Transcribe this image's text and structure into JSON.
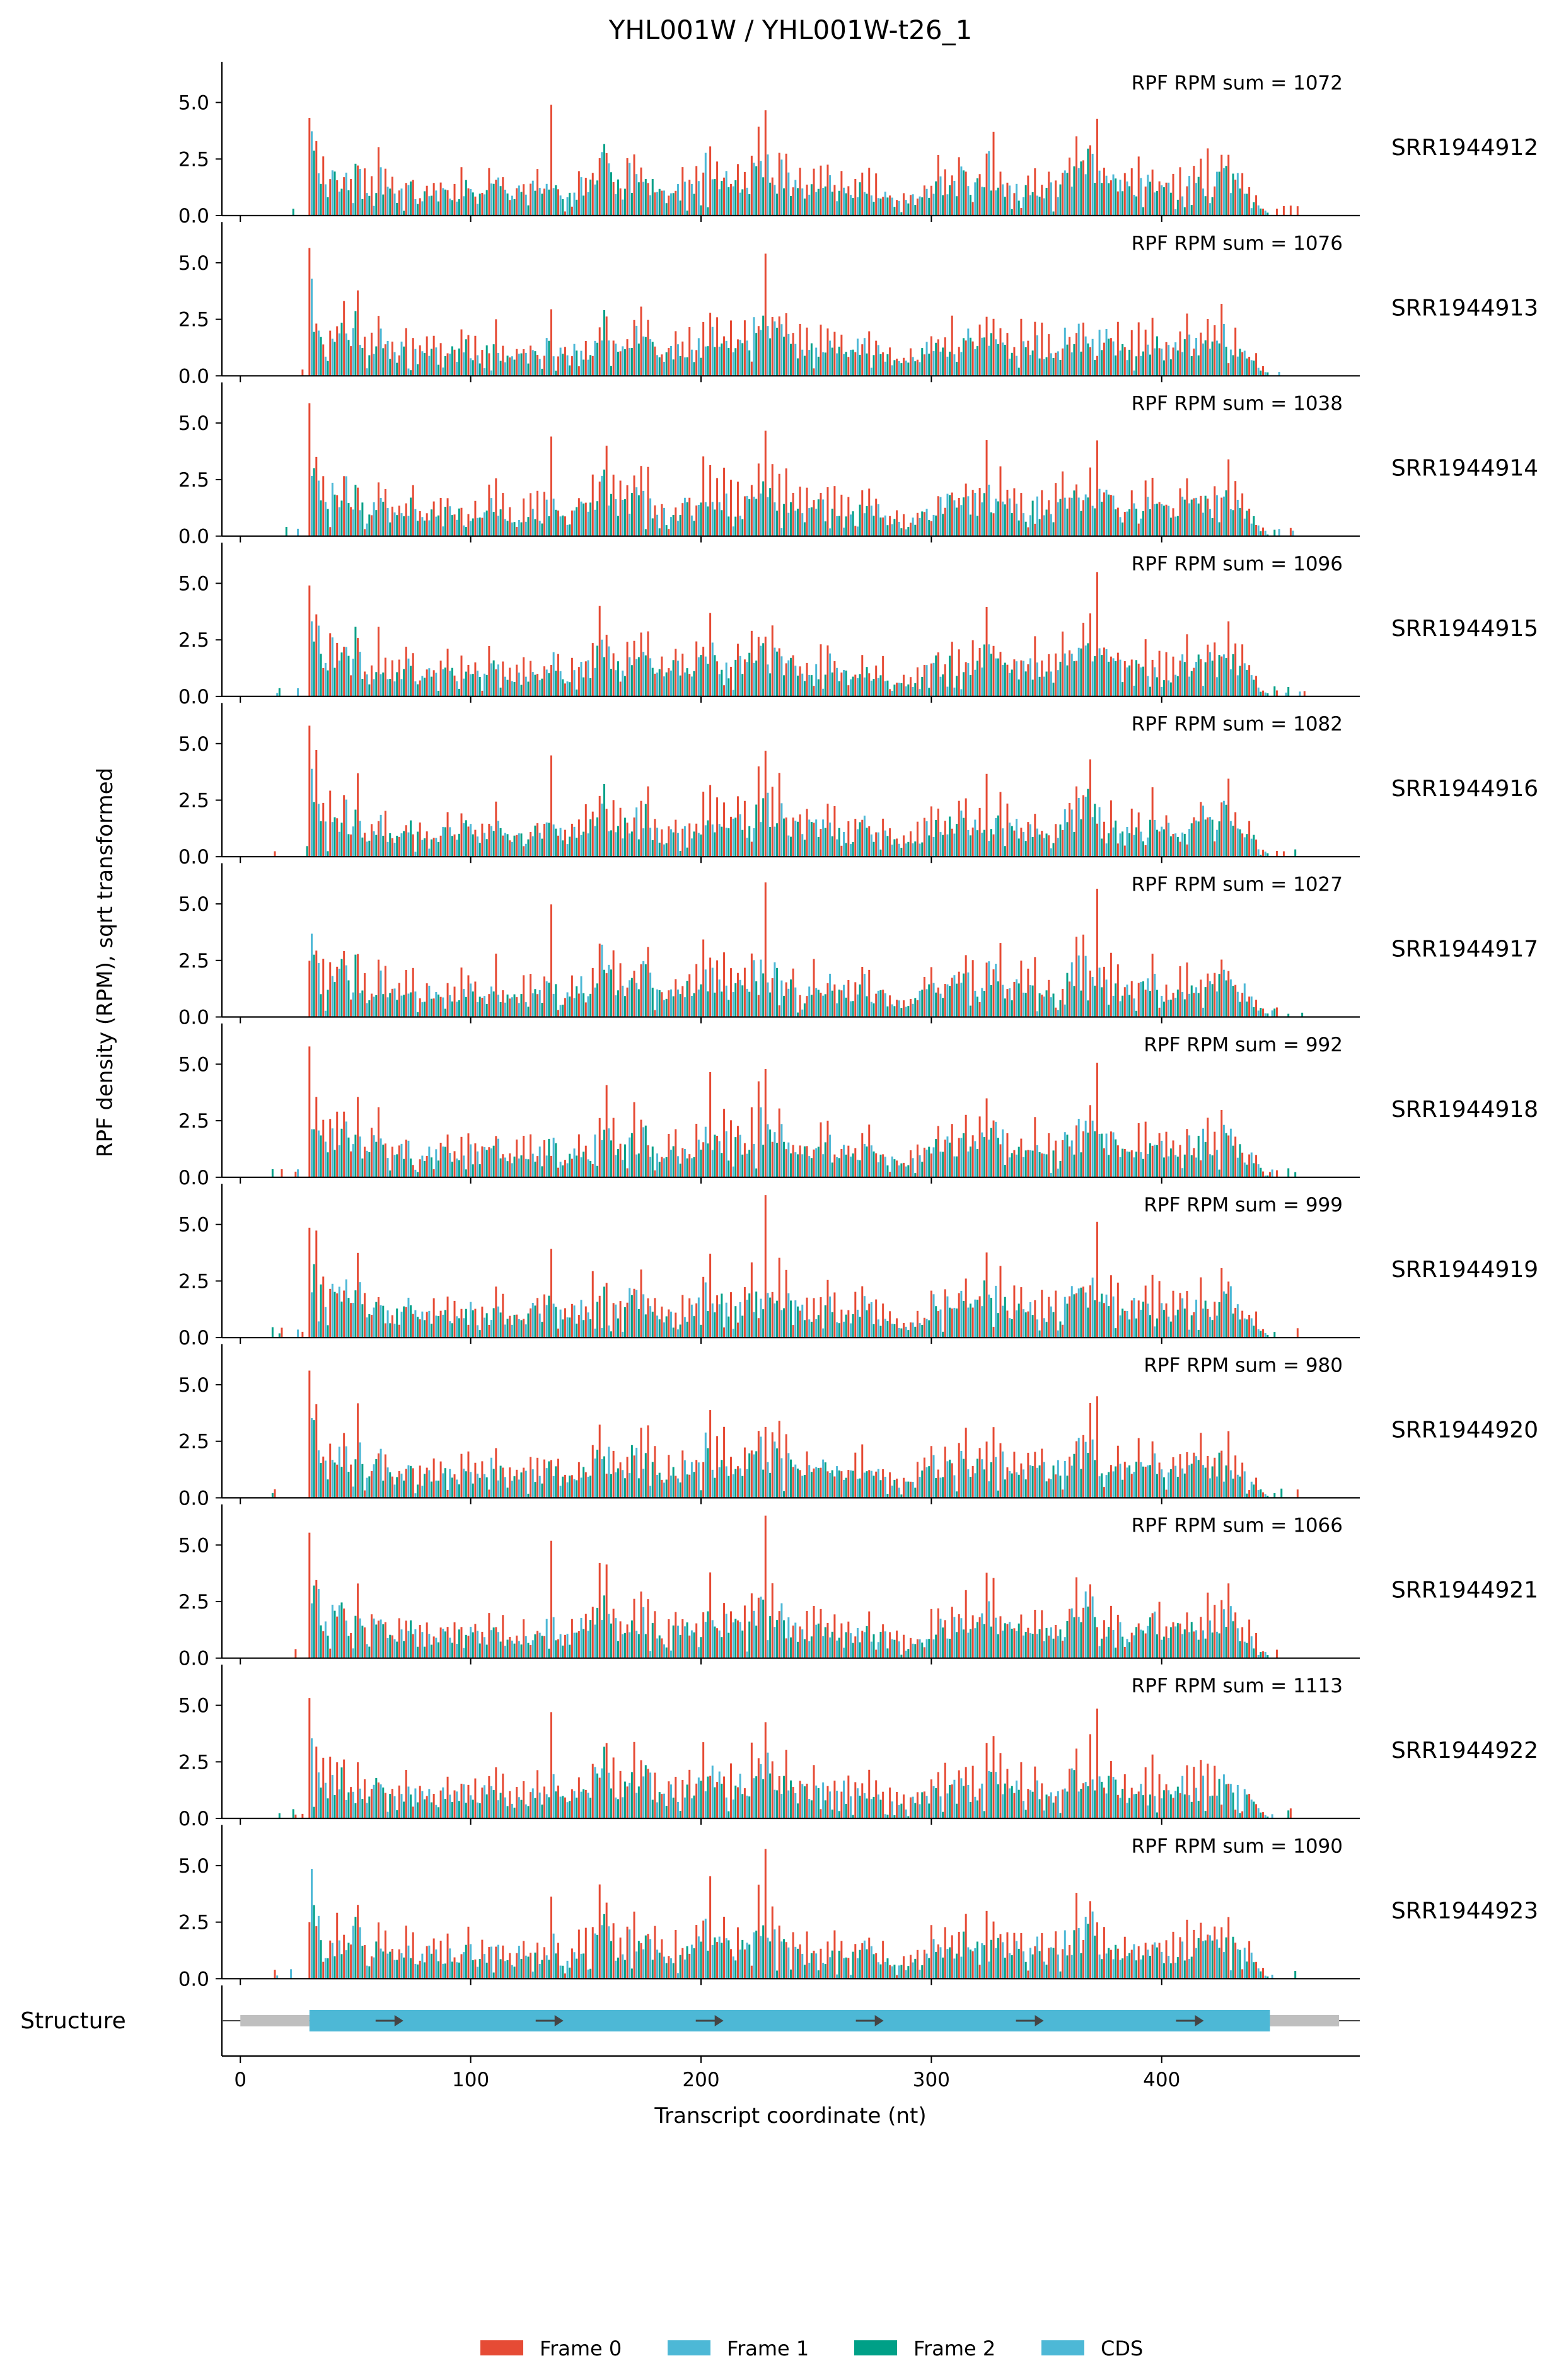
{
  "title": "YHL001W / YHL001W-t26_1",
  "ylabel": "RPF density (RPM), sqrt transformed",
  "xlabel": "Transcript coordinate (nt)",
  "structure_label": "Structure",
  "colors": {
    "frame0": "#e64b35",
    "frame1": "#4db8d6",
    "frame2": "#00a087",
    "cds": "#4db8d6",
    "utr": "#bfbfbf",
    "arrow": "#444444"
  },
  "chart_data": {
    "type": "bar",
    "x_axis": {
      "label": "Transcript coordinate (nt)",
      "range": [
        -8,
        486
      ],
      "ticks": [
        0,
        100,
        200,
        300,
        400
      ],
      "tick_labels": [
        "0",
        "100",
        "200",
        "300",
        "400"
      ]
    },
    "y_axis": {
      "range": [
        0,
        6.8
      ],
      "ticks": [
        0,
        2.5,
        5
      ],
      "tick_labels": [
        "0.0",
        "2.5",
        "5.0"
      ]
    },
    "legend": {
      "placement": "bottom-center",
      "entries": [
        {
          "label": "Frame 0",
          "color": "#e64b35"
        },
        {
          "label": "Frame 1",
          "color": "#4db8d6"
        },
        {
          "label": "Frame 2",
          "color": "#00a087"
        },
        {
          "label": "CDS",
          "color": "#4db8d6"
        }
      ]
    },
    "cds": {
      "start": 30,
      "end": 447
    },
    "transcript": {
      "start": 0,
      "end": 477
    },
    "base_profile": [
      [
        30,
        3.6
      ],
      [
        31,
        3.9
      ],
      [
        32,
        3.4
      ],
      [
        34,
        2.6
      ],
      [
        35,
        2.2
      ],
      [
        36,
        1.6
      ],
      [
        38,
        1.2
      ],
      [
        40,
        2.5
      ],
      [
        42,
        1.8
      ],
      [
        44,
        2.4
      ],
      [
        45,
        2.0
      ],
      [
        46,
        2.3
      ],
      [
        48,
        1.1
      ],
      [
        50,
        2.9
      ],
      [
        51,
        2.6
      ],
      [
        53,
        1.5
      ],
      [
        55,
        1.0
      ],
      [
        57,
        1.3
      ],
      [
        60,
        2.0
      ],
      [
        63,
        1.4
      ],
      [
        66,
        1.1
      ],
      [
        70,
        1.3
      ],
      [
        74,
        1.6
      ],
      [
        78,
        0.9
      ],
      [
        82,
        1.3
      ],
      [
        86,
        1.0
      ],
      [
        90,
        1.4
      ],
      [
        94,
        1.1
      ],
      [
        98,
        1.5
      ],
      [
        103,
        1.0
      ],
      [
        107,
        1.3
      ],
      [
        111,
        1.7
      ],
      [
        115,
        1.0
      ],
      [
        118,
        0.8
      ],
      [
        121,
        1.2
      ],
      [
        125,
        1.0
      ],
      [
        128,
        1.5
      ],
      [
        131,
        1.0
      ],
      [
        135,
        2.0
      ],
      [
        138,
        1.2
      ],
      [
        141,
        0.8
      ],
      [
        144,
        1.1
      ],
      [
        148,
        1.5
      ],
      [
        151,
        1.4
      ],
      [
        154,
        2.0
      ],
      [
        156,
        2.6
      ],
      [
        158,
        3.0
      ],
      [
        160,
        2.2
      ],
      [
        163,
        1.6
      ],
      [
        166,
        1.4
      ],
      [
        170,
        2.2
      ],
      [
        173,
        1.7
      ],
      [
        176,
        2.3
      ],
      [
        179,
        1.5
      ],
      [
        182,
        1.2
      ],
      [
        185,
        1.0
      ],
      [
        188,
        1.5
      ],
      [
        191,
        1.2
      ],
      [
        194,
        1.5
      ],
      [
        197,
        1.3
      ],
      [
        200,
        1.8
      ],
      [
        202,
        2.4
      ],
      [
        204,
        2.2
      ],
      [
        207,
        1.7
      ],
      [
        210,
        2.0
      ],
      [
        213,
        1.5
      ],
      [
        216,
        1.8
      ],
      [
        220,
        1.6
      ],
      [
        222,
        2.1
      ],
      [
        225,
        2.6
      ],
      [
        228,
        2.6
      ],
      [
        231,
        2.0
      ],
      [
        234,
        2.2
      ],
      [
        237,
        1.8
      ],
      [
        240,
        1.5
      ],
      [
        243,
        1.4
      ],
      [
        246,
        1.3
      ],
      [
        250,
        1.6
      ],
      [
        253,
        1.4
      ],
      [
        256,
        1.6
      ],
      [
        259,
        1.2
      ],
      [
        262,
        1.4
      ],
      [
        265,
        1.0
      ],
      [
        268,
        1.4
      ],
      [
        271,
        1.6
      ],
      [
        274,
        1.3
      ],
      [
        277,
        1.2
      ],
      [
        280,
        1.0
      ],
      [
        283,
        0.8
      ],
      [
        286,
        0.7
      ],
      [
        289,
        0.6
      ],
      [
        292,
        0.8
      ],
      [
        295,
        1.1
      ],
      [
        298,
        1.3
      ],
      [
        300,
        1.5
      ],
      [
        302,
        1.7
      ],
      [
        305,
        1.4
      ],
      [
        308,
        1.8
      ],
      [
        311,
        1.4
      ],
      [
        314,
        2.0
      ],
      [
        317,
        1.6
      ],
      [
        320,
        1.7
      ],
      [
        322,
        2.1
      ],
      [
        324,
        2.6
      ],
      [
        327,
        2.2
      ],
      [
        330,
        2.0
      ],
      [
        333,
        1.6
      ],
      [
        336,
        1.4
      ],
      [
        339,
        1.5
      ],
      [
        342,
        1.3
      ],
      [
        345,
        1.6
      ],
      [
        348,
        1.4
      ],
      [
        351,
        1.2
      ],
      [
        354,
        1.4
      ],
      [
        357,
        1.7
      ],
      [
        360,
        1.9
      ],
      [
        362,
        2.1
      ],
      [
        364,
        2.4
      ],
      [
        366,
        2.2
      ],
      [
        368,
        2.8
      ],
      [
        370,
        2.5
      ],
      [
        372,
        2.0
      ],
      [
        375,
        1.7
      ],
      [
        378,
        1.8
      ],
      [
        381,
        1.5
      ],
      [
        384,
        1.2
      ],
      [
        387,
        1.4
      ],
      [
        390,
        1.6
      ],
      [
        393,
        1.5
      ],
      [
        396,
        1.9
      ],
      [
        399,
        1.5
      ],
      [
        402,
        1.2
      ],
      [
        405,
        1.3
      ],
      [
        408,
        1.5
      ],
      [
        411,
        1.7
      ],
      [
        414,
        1.4
      ],
      [
        417,
        1.9
      ],
      [
        420,
        1.8
      ],
      [
        423,
        1.5
      ],
      [
        426,
        2.1
      ],
      [
        429,
        2.2
      ],
      [
        431,
        1.8
      ],
      [
        434,
        1.5
      ],
      [
        437,
        1.2
      ],
      [
        440,
        0.9
      ],
      [
        442,
        0.5
      ],
      [
        444,
        0.3
      ],
      [
        446,
        0.15
      ],
      [
        447,
        0.0
      ]
    ],
    "panels": [
      {
        "sample": "SRR1944912",
        "annotation": "RPF RPM sum = 1072"
      },
      {
        "sample": "SRR1944913",
        "annotation": "RPF RPM sum = 1076"
      },
      {
        "sample": "SRR1944914",
        "annotation": "RPF RPM sum = 1038"
      },
      {
        "sample": "SRR1944915",
        "annotation": "RPF RPM sum = 1096"
      },
      {
        "sample": "SRR1944916",
        "annotation": "RPF RPM sum = 1082"
      },
      {
        "sample": "SRR1944917",
        "annotation": "RPF RPM sum = 1027"
      },
      {
        "sample": "SRR1944918",
        "annotation": "RPF RPM sum = 992"
      },
      {
        "sample": "SRR1944919",
        "annotation": "RPF RPM sum = 999"
      },
      {
        "sample": "SRR1944920",
        "annotation": "RPF RPM sum = 980"
      },
      {
        "sample": "SRR1944921",
        "annotation": "RPF RPM sum = 1066"
      },
      {
        "sample": "SRR1944922",
        "annotation": "RPF RPM sum = 1113"
      },
      {
        "sample": "SRR1944923",
        "annotation": "RPF RPM sum = 1090"
      }
    ]
  }
}
